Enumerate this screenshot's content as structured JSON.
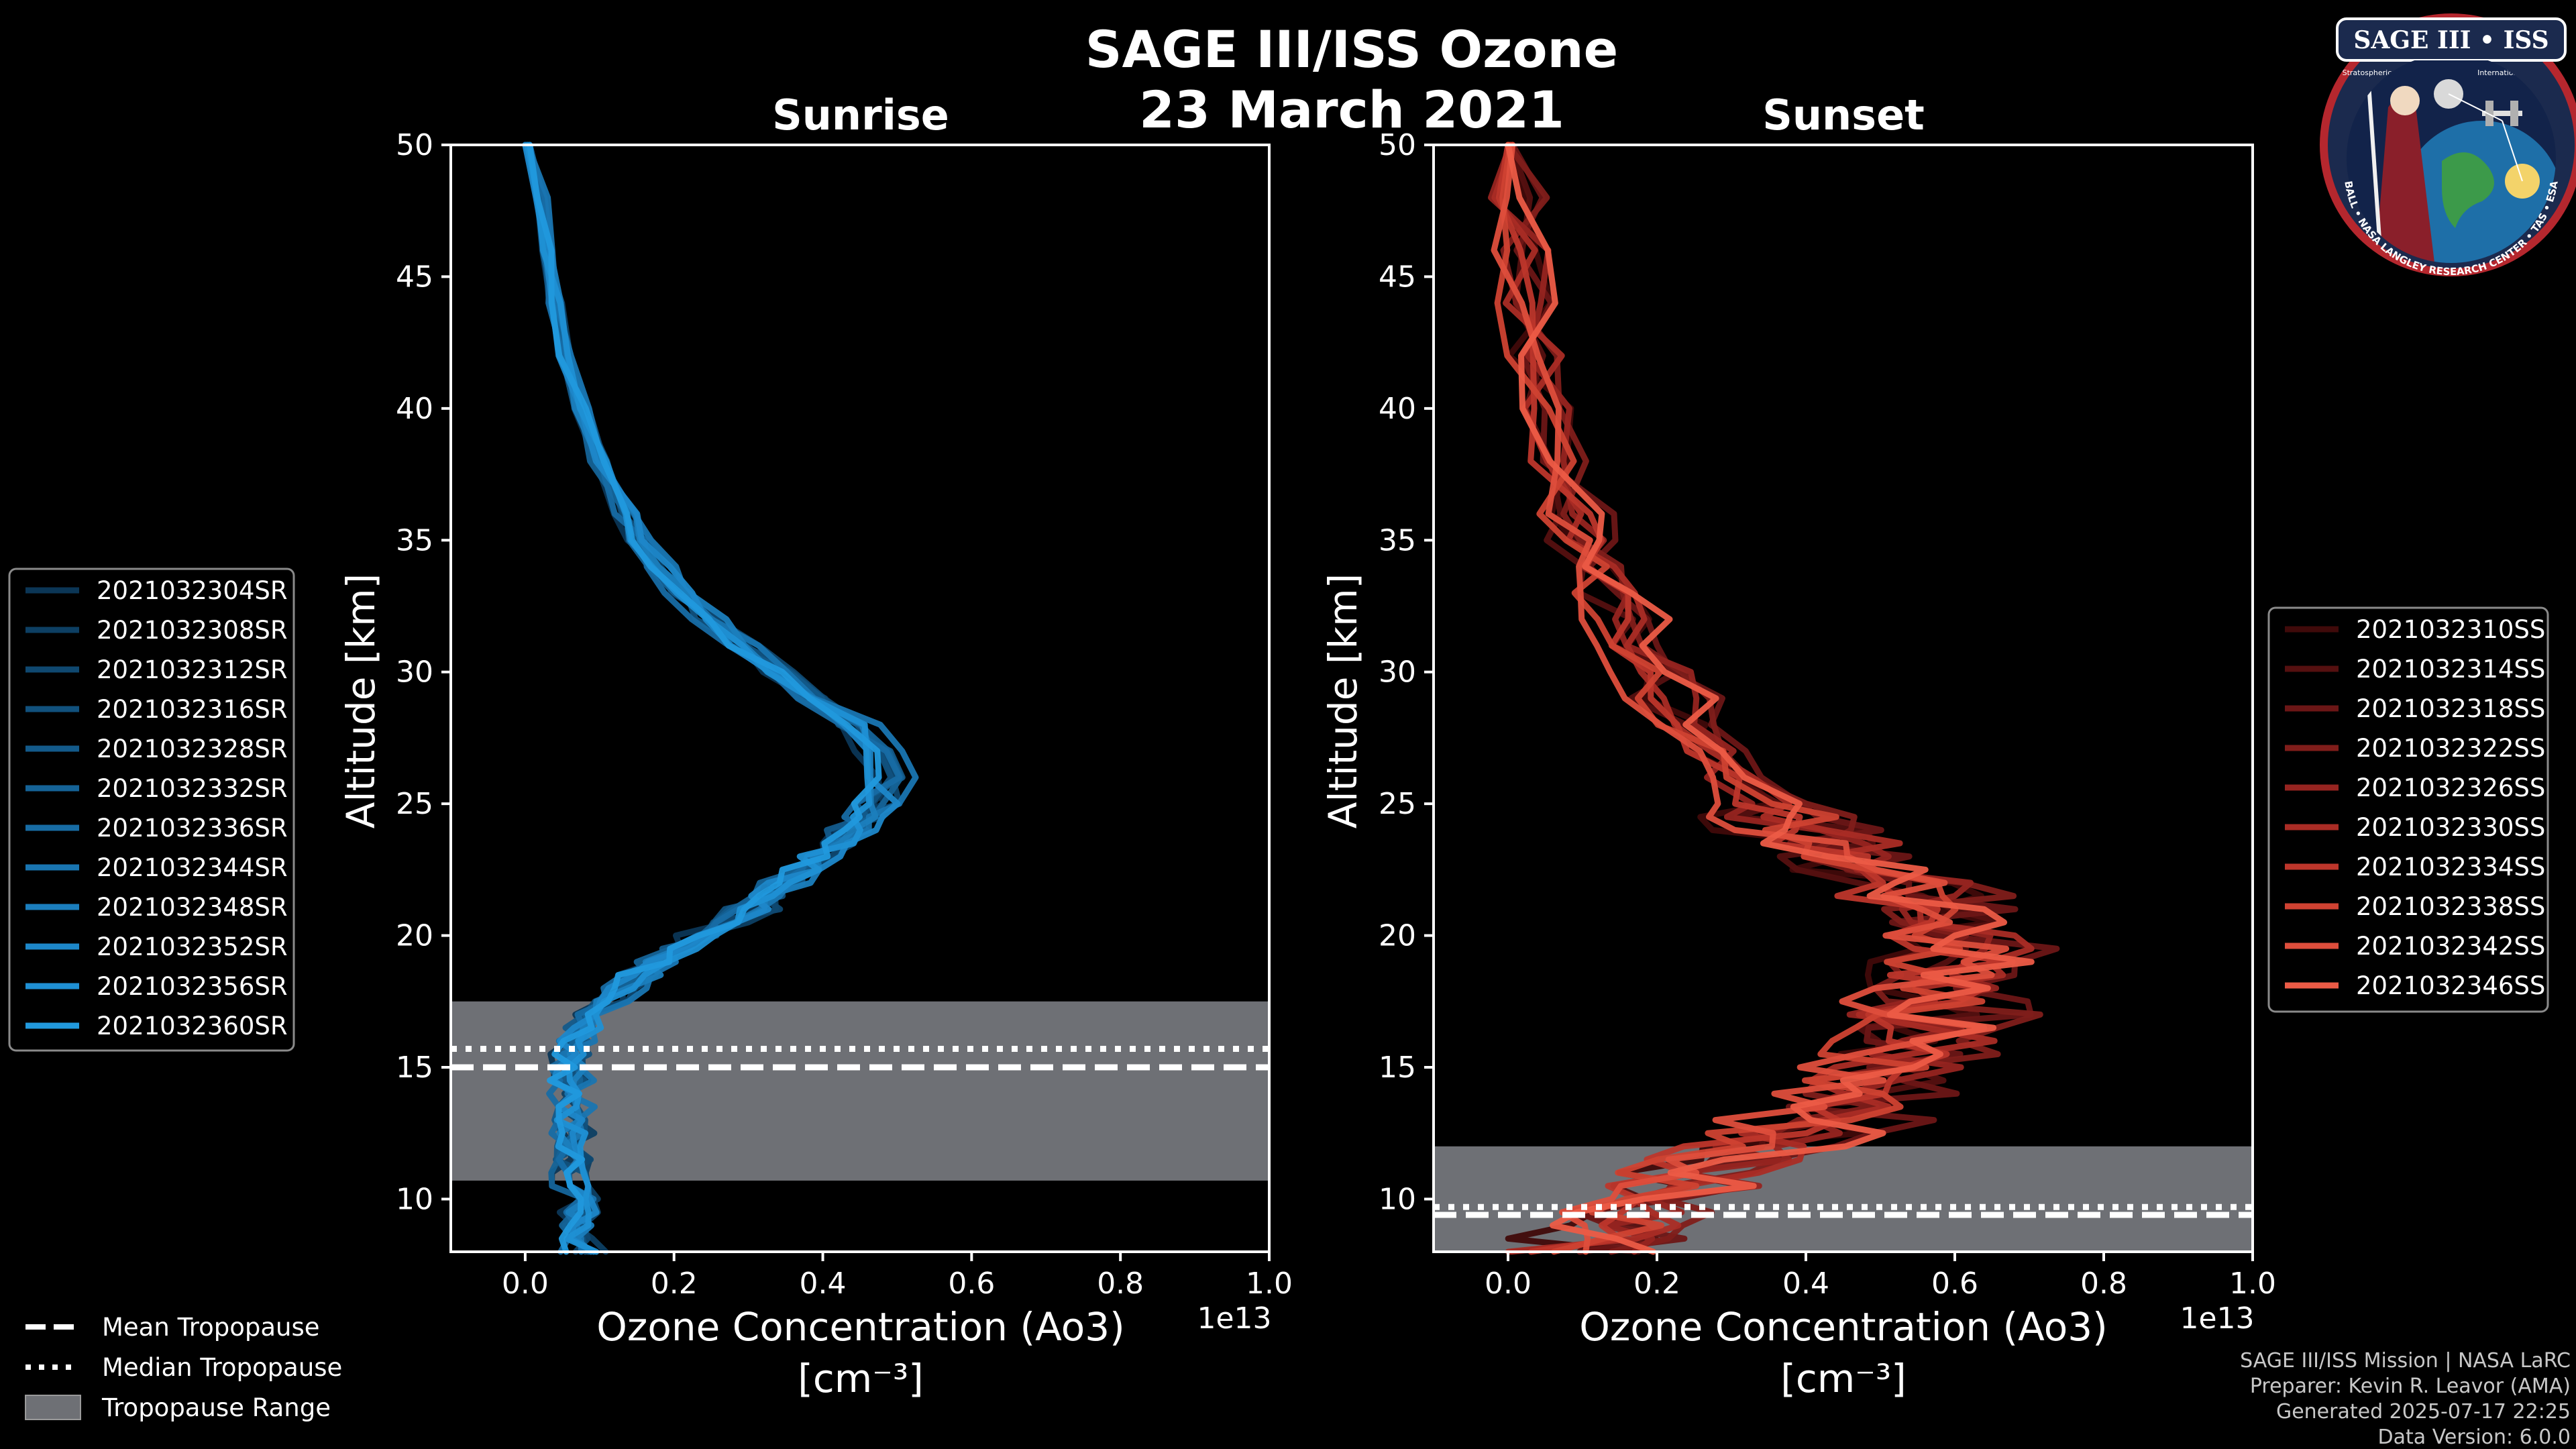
{
  "title_line1": "SAGE III/ISS Ozone",
  "title_line2": "23 March 2021",
  "logo": {
    "name": "SAGE III • ISS",
    "small_text": "Stratospheric Aerosol and Gas Experiment III",
    "iss_text": "International Space Station",
    "ring_text": "BALL • NASA LANGLEY RESEARCH CENTER • TAS • ESA"
  },
  "colors": {
    "sunrise_shades": [
      "#0b3656",
      "#0d3f63",
      "#0f4870",
      "#11517d",
      "#135a8a",
      "#156397",
      "#176ca4",
      "#1975b1",
      "#1b7ebd",
      "#1d87c9",
      "#1f90d4",
      "#2199dd"
    ],
    "sunset_shades": [
      "#400a0a",
      "#551010",
      "#6b1616",
      "#801d1a",
      "#962420",
      "#aa2c25",
      "#bd362b",
      "#cf4232",
      "#de4e3c",
      "#ec5b46"
    ],
    "tropopause_range": "#6e7075",
    "background": "#000000",
    "axis": "#ffffff"
  },
  "chart_data": [
    {
      "type": "line",
      "title": "Sunrise",
      "xlabel": "Ozone Concentration (Ao3)",
      "xlabel_units": "[cm⁻³]",
      "ylabel": "Altitude [km]",
      "x_scale_label": "1e13",
      "xlim": [
        -0.1,
        1.0
      ],
      "ylim": [
        8,
        50
      ],
      "x_ticks": [
        "0.0",
        "0.2",
        "0.4",
        "0.6",
        "0.8",
        "1.0"
      ],
      "y_ticks": [
        "10",
        "15",
        "20",
        "25",
        "30",
        "35",
        "40",
        "45",
        "50"
      ],
      "altitude_km": [
        8,
        9,
        10,
        11,
        12,
        13,
        14,
        15,
        16,
        17,
        18,
        19,
        20,
        21,
        22,
        23,
        24,
        25,
        26,
        27,
        28,
        29,
        30,
        31,
        32,
        33,
        34,
        35,
        36,
        38,
        40,
        42,
        44,
        46,
        48,
        50
      ],
      "mean_profile_1e13": [
        0.08,
        0.07,
        0.07,
        0.06,
        0.06,
        0.06,
        0.06,
        0.06,
        0.07,
        0.09,
        0.13,
        0.18,
        0.24,
        0.3,
        0.35,
        0.4,
        0.44,
        0.47,
        0.49,
        0.48,
        0.44,
        0.39,
        0.34,
        0.29,
        0.25,
        0.21,
        0.18,
        0.155,
        0.135,
        0.1,
        0.075,
        0.055,
        0.04,
        0.03,
        0.022,
        0.0
      ],
      "series": [
        {
          "name": "2021032304SR"
        },
        {
          "name": "2021032308SR"
        },
        {
          "name": "2021032312SR"
        },
        {
          "name": "2021032316SR"
        },
        {
          "name": "2021032328SR"
        },
        {
          "name": "2021032332SR"
        },
        {
          "name": "2021032336SR"
        },
        {
          "name": "2021032344SR"
        },
        {
          "name": "2021032348SR"
        },
        {
          "name": "2021032352SR"
        },
        {
          "name": "2021032356SR"
        },
        {
          "name": "2021032360SR"
        }
      ],
      "tropopause": {
        "mean_km": 15.0,
        "median_km": 15.7,
        "range_km": [
          10.7,
          17.5
        ]
      }
    },
    {
      "type": "line",
      "title": "Sunset",
      "xlabel": "Ozone Concentration (Ao3)",
      "xlabel_units": "[cm⁻³]",
      "ylabel": "Altitude [km]",
      "x_scale_label": "1e13",
      "xlim": [
        -0.1,
        1.0
      ],
      "ylim": [
        8,
        50
      ],
      "x_ticks": [
        "0.0",
        "0.2",
        "0.4",
        "0.6",
        "0.8",
        "1.0"
      ],
      "y_ticks": [
        "10",
        "15",
        "20",
        "25",
        "30",
        "35",
        "40",
        "45",
        "50"
      ],
      "altitude_km": [
        8,
        9,
        10,
        11,
        12,
        13,
        14,
        15,
        16,
        17,
        18,
        19,
        20,
        21,
        22,
        23,
        24,
        25,
        26,
        27,
        28,
        29,
        30,
        31,
        32,
        33,
        34,
        35,
        36,
        38,
        40,
        42,
        44,
        46,
        48,
        50
      ],
      "mean_profile_1e13": [
        0.1,
        0.14,
        0.2,
        0.26,
        0.34,
        0.42,
        0.48,
        0.52,
        0.55,
        0.57,
        0.59,
        0.6,
        0.6,
        0.58,
        0.53,
        0.46,
        0.4,
        0.35,
        0.31,
        0.28,
        0.25,
        0.22,
        0.2,
        0.18,
        0.16,
        0.14,
        0.12,
        0.105,
        0.09,
        0.07,
        0.05,
        0.035,
        0.025,
        0.015,
        0.008,
        0.0
      ],
      "series": [
        {
          "name": "2021032310SS"
        },
        {
          "name": "2021032314SS"
        },
        {
          "name": "2021032318SS"
        },
        {
          "name": "2021032322SS"
        },
        {
          "name": "2021032326SS"
        },
        {
          "name": "2021032330SS"
        },
        {
          "name": "2021032334SS"
        },
        {
          "name": "2021032338SS"
        },
        {
          "name": "2021032342SS"
        },
        {
          "name": "2021032346SS"
        }
      ],
      "tropopause": {
        "mean_km": 9.4,
        "median_km": 9.7,
        "range_km": [
          8.0,
          12.0
        ]
      }
    }
  ],
  "tropopause_legend": [
    "Mean Tropopause",
    "Median Tropopause",
    "Tropopause Range"
  ],
  "footer": [
    "SAGE III/ISS Mission | NASA LaRC",
    "Preparer: Kevin R. Leavor (AMA)",
    "Generated 2025-07-17 22:25",
    "Data Version: 6.0.0"
  ]
}
